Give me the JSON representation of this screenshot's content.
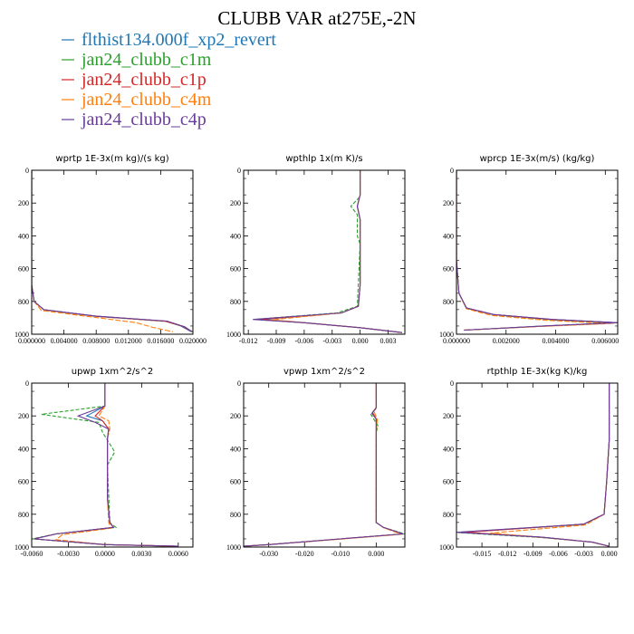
{
  "title": "CLUBB VAR at275E,-2N",
  "legend": [
    {
      "name": "flthist134.000f_xp2_revert",
      "color": "#1f77b4"
    },
    {
      "name": "jan24_clubb_c1m",
      "color": "#2ca02c"
    },
    {
      "name": "jan24_clubb_c1p",
      "color": "#d62728"
    },
    {
      "name": "jan24_clubb_c4m",
      "color": "#ff7f0e"
    },
    {
      "name": "jan24_clubb_c4p",
      "color": "#6a3d9a"
    }
  ],
  "chart_data": [
    {
      "type": "line",
      "title": "wprtp  1E-3x(m kg)/(s kg)",
      "xlim": [
        0.0,
        0.02
      ],
      "ylim": [
        1000,
        0
      ],
      "xticks": [
        "0.000000",
        "0.004000",
        "0.008000",
        "0.012000",
        "0.016000",
        "0.020000"
      ],
      "xtick_values": [
        0.0,
        0.004,
        0.008,
        0.012,
        0.016,
        0.02
      ],
      "yticks": [
        "0",
        "200",
        "400",
        "600",
        "800",
        "1000"
      ],
      "series": [
        {
          "color": "#1f77b4",
          "x": [
            0,
            0,
            0.0003,
            0.0015,
            0.008,
            0.0165,
            0.0185,
            0.0198
          ],
          "y": [
            0,
            700,
            800,
            850,
            890,
            920,
            950,
            985
          ]
        },
        {
          "color": "#2ca02c",
          "x": [
            0,
            0,
            0.0003,
            0.0015,
            0.0082,
            0.0167,
            0.0188,
            0.02
          ],
          "y": [
            0,
            700,
            800,
            852,
            892,
            922,
            952,
            985
          ]
        },
        {
          "color": "#d62728",
          "x": [
            0,
            0,
            0.0003,
            0.0015,
            0.0081,
            0.0166,
            0.0187,
            0.0199
          ],
          "y": [
            0,
            700,
            800,
            851,
            891,
            921,
            951,
            985
          ]
        },
        {
          "color": "#ff7f0e",
          "x": [
            0,
            0,
            0.0003,
            0.0012,
            0.0075,
            0.013,
            0.015,
            0.0175
          ],
          "y": [
            0,
            700,
            800,
            855,
            895,
            930,
            958,
            985
          ]
        },
        {
          "color": "#6a3d9a",
          "x": [
            0,
            0,
            0.0003,
            0.0015,
            0.008,
            0.0168,
            0.019,
            0.0199
          ],
          "y": [
            0,
            700,
            800,
            850,
            890,
            920,
            955,
            985
          ]
        }
      ]
    },
    {
      "type": "line",
      "title": "wpthlp  1x(m K)/s",
      "xlim": [
        -0.0125,
        0.0048
      ],
      "ylim": [
        1000,
        0
      ],
      "xticks": [
        "-0.012",
        "-0.009",
        "-0.006",
        "-0.003",
        "0.000",
        "0.003"
      ],
      "xtick_values": [
        -0.012,
        -0.009,
        -0.006,
        -0.003,
        0.0,
        0.003
      ],
      "yticks": [
        "0",
        "200",
        "400",
        "600",
        "800",
        "1000"
      ],
      "series": [
        {
          "color": "#1f77b4",
          "x": [
            0,
            0,
            -0.0003,
            0,
            0,
            -0.0002,
            -0.002,
            -0.0105,
            -0.006,
            0.0,
            0.0045
          ],
          "y": [
            0,
            150,
            220,
            300,
            700,
            830,
            870,
            910,
            930,
            960,
            990
          ]
        },
        {
          "color": "#2ca02c",
          "x": [
            0,
            0,
            -0.001,
            -0.0003,
            -0.0003,
            0,
            -0.0003,
            -0.0025,
            -0.0115,
            -0.006,
            0.0,
            0.0045
          ],
          "y": [
            0,
            160,
            220,
            270,
            400,
            450,
            830,
            870,
            910,
            930,
            960,
            990
          ]
        },
        {
          "color": "#d62728",
          "x": [
            0,
            0,
            -0.0003,
            0,
            0,
            -0.0002,
            -0.002,
            -0.0108,
            -0.006,
            0.0,
            0.0045
          ],
          "y": [
            0,
            150,
            220,
            300,
            700,
            830,
            870,
            910,
            930,
            960,
            990
          ]
        },
        {
          "color": "#ff7f0e",
          "x": [
            0,
            0,
            -0.0003,
            0,
            0,
            -0.0002,
            -0.002,
            -0.0095,
            -0.0055,
            0.0,
            0.0045
          ],
          "y": [
            0,
            150,
            220,
            300,
            700,
            830,
            870,
            912,
            932,
            960,
            990
          ]
        },
        {
          "color": "#6a3d9a",
          "x": [
            0,
            0,
            -0.0003,
            0,
            0,
            -0.0002,
            -0.002,
            -0.0115,
            -0.006,
            0.0,
            0.0045
          ],
          "y": [
            0,
            150,
            220,
            300,
            700,
            830,
            870,
            910,
            930,
            960,
            990
          ]
        }
      ]
    },
    {
      "type": "line",
      "title": "wprcp  1E-3x(m/s) (kg/kg)",
      "xlim": [
        0.0,
        0.0065
      ],
      "ylim": [
        1000,
        0
      ],
      "xticks": [
        "0.000000",
        "0.002000",
        "0.004000",
        "0.006000"
      ],
      "xtick_values": [
        0.0,
        0.002,
        0.004,
        0.006
      ],
      "yticks": [
        "0",
        "200",
        "400",
        "600",
        "800",
        "1000"
      ],
      "series": [
        {
          "color": "#1f77b4",
          "x": [
            0,
            0,
            0.0001,
            0.0004,
            0.0015,
            0.0038,
            0.0065,
            0.0035,
            0.0003
          ],
          "y": [
            0,
            550,
            750,
            840,
            880,
            910,
            930,
            950,
            975
          ]
        },
        {
          "color": "#2ca02c",
          "x": [
            0,
            0,
            0.0001,
            0.0004,
            0.0015,
            0.0038,
            0.0063,
            0.0034,
            0.0003
          ],
          "y": [
            0,
            550,
            750,
            842,
            882,
            912,
            932,
            952,
            975
          ]
        },
        {
          "color": "#d62728",
          "x": [
            0,
            0,
            0.0001,
            0.0004,
            0.0015,
            0.0038,
            0.0065,
            0.0036,
            0.0003
          ],
          "y": [
            0,
            550,
            750,
            840,
            880,
            910,
            930,
            950,
            975
          ]
        },
        {
          "color": "#ff7f0e",
          "x": [
            0,
            0,
            0.0001,
            0.0004,
            0.0014,
            0.0036,
            0.0062,
            0.0033,
            0.0003
          ],
          "y": [
            0,
            550,
            750,
            845,
            885,
            915,
            935,
            953,
            975
          ]
        },
        {
          "color": "#6a3d9a",
          "x": [
            0,
            0,
            0.0001,
            0.0004,
            0.0015,
            0.0039,
            0.0065,
            0.0035,
            0.0003
          ],
          "y": [
            0,
            550,
            750,
            840,
            880,
            910,
            930,
            950,
            975
          ]
        }
      ]
    },
    {
      "type": "line",
      "title": "upwp  1xm^2/s^2",
      "xlim": [
        -0.006,
        0.0072
      ],
      "ylim": [
        1000,
        0
      ],
      "xticks": [
        "-0.0060",
        "-0.0030",
        "0.0000",
        "0.0030",
        "0.0060"
      ],
      "xtick_values": [
        -0.006,
        -0.003,
        0.0,
        0.003,
        0.006
      ],
      "yticks": [
        "0",
        "200",
        "400",
        "600",
        "800",
        "1000"
      ],
      "series": [
        {
          "color": "#1f77b4",
          "x": [
            0,
            0,
            -0.0015,
            -0.0002,
            0.0003,
            0.0002,
            0.0002,
            0.0004,
            0.0007,
            -0.004,
            -0.0058,
            0.0,
            0.006
          ],
          "y": [
            0,
            140,
            200,
            230,
            280,
            340,
            700,
            850,
            880,
            920,
            950,
            985,
            995
          ]
        },
        {
          "color": "#2ca02c",
          "x": [
            0,
            0,
            -0.0052,
            -0.0005,
            -0.0002,
            0.0008,
            0.0002,
            0.0004,
            0.0009,
            -0.004,
            -0.006,
            0.0,
            0.006
          ],
          "y": [
            0,
            140,
            190,
            240,
            300,
            420,
            500,
            850,
            880,
            920,
            950,
            985,
            995
          ]
        },
        {
          "color": "#d62728",
          "x": [
            0,
            0,
            -0.0008,
            -0.0002,
            0.0003,
            0.0002,
            0.0002,
            0.0004,
            0.0007,
            -0.004,
            -0.0058,
            0.0,
            0.006
          ],
          "y": [
            0,
            140,
            200,
            230,
            280,
            340,
            700,
            850,
            880,
            920,
            950,
            985,
            995
          ]
        },
        {
          "color": "#ff7f0e",
          "x": [
            0,
            0,
            -0.0005,
            0.0003,
            0.0004,
            0.0002,
            0.0002,
            0.0003,
            0.0005,
            -0.0035,
            -0.004,
            0.0,
            0.006
          ],
          "y": [
            0,
            140,
            200,
            230,
            280,
            340,
            700,
            850,
            885,
            925,
            955,
            985,
            995
          ]
        },
        {
          "color": "#6a3d9a",
          "x": [
            0,
            0,
            -0.0022,
            -0.0008,
            0.0003,
            0.0002,
            0.0002,
            0.0004,
            0.0007,
            -0.004,
            -0.0058,
            0.0,
            0.006
          ],
          "y": [
            0,
            140,
            200,
            240,
            280,
            340,
            700,
            850,
            880,
            920,
            950,
            985,
            995
          ]
        }
      ]
    },
    {
      "type": "line",
      "title": "vpwp  1xm^2/s^2",
      "xlim": [
        -0.037,
        0.008
      ],
      "ylim": [
        1000,
        0
      ],
      "xticks": [
        "-0.030",
        "-0.020",
        "-0.010",
        "0.000"
      ],
      "xtick_values": [
        -0.03,
        -0.02,
        -0.01,
        0.0
      ],
      "yticks": [
        "0",
        "200",
        "400",
        "600",
        "800",
        "1000"
      ],
      "series": [
        {
          "color": "#1f77b4",
          "x": [
            0,
            0,
            -0.001,
            0,
            0,
            0,
            0,
            0.002,
            0.0075,
            -0.01,
            -0.03,
            -0.037
          ],
          "y": [
            0,
            150,
            180,
            220,
            300,
            700,
            850,
            880,
            920,
            950,
            985,
            995
          ]
        },
        {
          "color": "#2ca02c",
          "x": [
            0,
            0,
            -0.0015,
            0.0005,
            0,
            0,
            0,
            0.002,
            0.008,
            -0.01,
            -0.03,
            -0.037
          ],
          "y": [
            0,
            150,
            190,
            260,
            300,
            700,
            850,
            880,
            920,
            950,
            985,
            995
          ]
        },
        {
          "color": "#d62728",
          "x": [
            0,
            0,
            -0.001,
            0,
            0,
            0,
            0,
            0.002,
            0.0075,
            -0.01,
            -0.03,
            -0.037
          ],
          "y": [
            0,
            150,
            180,
            220,
            300,
            700,
            850,
            880,
            920,
            950,
            985,
            995
          ]
        },
        {
          "color": "#ff7f0e",
          "x": [
            0,
            0,
            -0.0005,
            0.0003,
            0,
            0,
            0,
            0.002,
            0.007,
            -0.01,
            -0.03,
            -0.037
          ],
          "y": [
            0,
            150,
            180,
            220,
            300,
            700,
            850,
            882,
            922,
            952,
            985,
            995
          ]
        },
        {
          "color": "#6a3d9a",
          "x": [
            0,
            0,
            -0.0012,
            0,
            0,
            0,
            0,
            0.002,
            0.0075,
            -0.01,
            -0.03,
            -0.037
          ],
          "y": [
            0,
            150,
            185,
            220,
            300,
            700,
            850,
            880,
            920,
            950,
            985,
            995
          ]
        }
      ]
    },
    {
      "type": "line",
      "title": "rtpthlp  1E-3x(kg K)/kg",
      "xlim": [
        -0.018,
        0.001
      ],
      "ylim": [
        1000,
        0
      ],
      "xticks": [
        "-0.015",
        "-0.012",
        "-0.009",
        "-0.006",
        "-0.003",
        "0.000"
      ],
      "xtick_values": [
        -0.015,
        -0.012,
        -0.009,
        -0.006,
        -0.003,
        0.0
      ],
      "yticks": [
        "0",
        "200",
        "400",
        "600",
        "800",
        "1000"
      ],
      "series": [
        {
          "color": "#1f77b4",
          "x": [
            0,
            0,
            -0.0003,
            -0.0006,
            -0.003,
            -0.0175,
            -0.008,
            -0.002,
            0.0
          ],
          "y": [
            0,
            350,
            600,
            800,
            860,
            910,
            940,
            970,
            995
          ]
        },
        {
          "color": "#2ca02c",
          "x": [
            0,
            0,
            -0.0003,
            -0.0006,
            -0.003,
            -0.0178,
            -0.008,
            -0.002,
            0.0
          ],
          "y": [
            0,
            350,
            600,
            800,
            862,
            912,
            942,
            970,
            995
          ]
        },
        {
          "color": "#d62728",
          "x": [
            0,
            0,
            -0.0003,
            -0.0006,
            -0.003,
            -0.017,
            -0.008,
            -0.002,
            0.0
          ],
          "y": [
            0,
            350,
            600,
            800,
            860,
            910,
            940,
            970,
            995
          ]
        },
        {
          "color": "#ff7f0e",
          "x": [
            0,
            0,
            -0.0003,
            -0.0006,
            -0.0028,
            -0.014,
            -0.007,
            -0.002,
            0.0
          ],
          "y": [
            0,
            350,
            600,
            800,
            865,
            915,
            945,
            970,
            995
          ]
        },
        {
          "color": "#6a3d9a",
          "x": [
            0,
            0,
            -0.0003,
            -0.0006,
            -0.003,
            -0.018,
            -0.008,
            -0.002,
            0.0
          ],
          "y": [
            0,
            350,
            600,
            800,
            860,
            910,
            940,
            970,
            995
          ]
        }
      ]
    }
  ]
}
